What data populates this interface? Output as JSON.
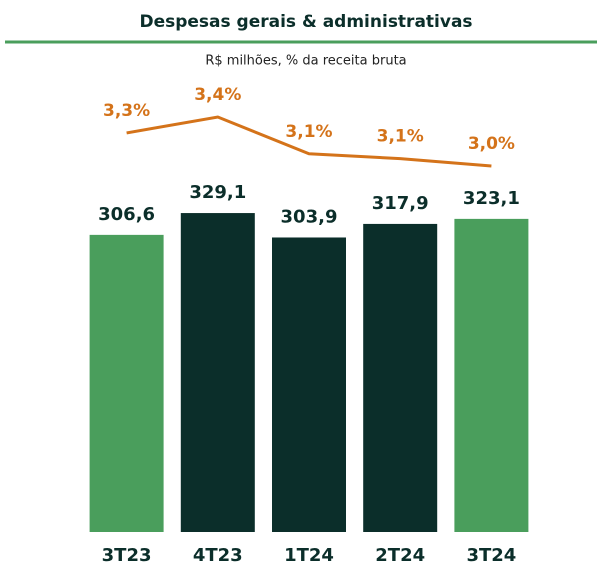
{
  "chart_data": {
    "type": "bar_line",
    "title": "Despesas gerais & administrativas",
    "subtitle": "R$ milhões, % da receita bruta",
    "categories": [
      "3T23",
      "4T23",
      "1T24",
      "2T24",
      "3T24"
    ],
    "ylim": [
      0,
      340
    ],
    "y2lim": [
      2.5,
      3.6
    ],
    "series": [
      {
        "type": "bar",
        "colors": [
          "#4a9e5c",
          "#0b2e2a",
          "#0b2e2a",
          "#0b2e2a",
          "#4a9e5c"
        ],
        "values": [
          306.6,
          329.1,
          303.9,
          317.9,
          323.1
        ],
        "value_labels": [
          "306,6",
          "329,1",
          "303,9",
          "317,9",
          "323,1"
        ]
      },
      {
        "type": "line",
        "axis": "y2",
        "color": "#d4731a",
        "values": [
          3.27,
          3.4,
          3.1,
          3.06,
          3.0
        ],
        "value_labels": [
          "3,3%",
          "3,4%",
          "3,1%",
          "3,1%",
          "3,0%"
        ]
      }
    ]
  }
}
